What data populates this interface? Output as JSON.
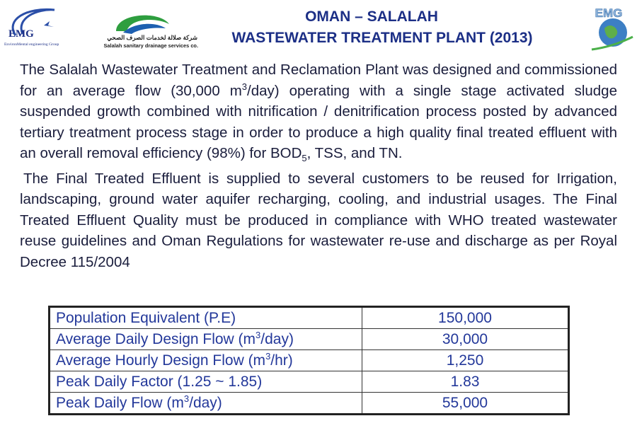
{
  "header": {
    "title_line1": "OMAN – SALALAH",
    "title_line2": "WASTEWATER TREATMENT PLANT (2013)",
    "left_logo": {
      "name": "EMG",
      "tagline": "EnvironMental engineering Group"
    },
    "center_logo": {
      "arabic": "شركة صلالة لخدمات الصرف الصحي",
      "english": "Salalah sanitary drainage services co."
    },
    "right_logo": {
      "name": "EMG"
    }
  },
  "paragraphs": [
    {
      "parts": [
        "The Salalah Wastewater Treatment and Reclamation Plant was designed and commissioned for an average flow (30,000 m",
        {
          "sup": "3"
        },
        "/day) operating with a single stage activated sludge suspended growth combined with nitrification / denitrification process posted by advanced tertiary treatment process stage in order to produce a high quality final treated effluent with an overall removal efficiency (98%) for BOD",
        {
          "sub": "5"
        },
        ", TSS, and TN."
      ]
    },
    {
      "parts": [
        "The Final Treated Effluent is supplied to several customers to be reused for Irrigation, landscaping, ground water aquifer recharging, cooling, and industrial usages. The Final Treated Effluent Quality must be produced in compliance with WHO treated wastewater reuse guidelines and Oman Regulations for wastewater re-use and discharge as per Royal Decree 115/2004"
      ]
    }
  ],
  "table": {
    "rows": [
      {
        "label": [
          "Population Equivalent (P.E)"
        ],
        "value": "150,000"
      },
      {
        "label": [
          "Average Daily Design Flow (m",
          {
            "sup": "3"
          },
          "/day)"
        ],
        "value": "30,000"
      },
      {
        "label": [
          "Average Hourly Design Flow (m",
          {
            "sup": "3"
          },
          "/hr)"
        ],
        "value": "1,250"
      },
      {
        "label": [
          "Peak Daily Factor (1.25 ~ 1.85)"
        ],
        "value": "1.83"
      },
      {
        "label": [
          "Peak Daily Flow (m",
          {
            "sup": "3"
          },
          "/day)"
        ],
        "value": "55,000"
      }
    ]
  }
}
